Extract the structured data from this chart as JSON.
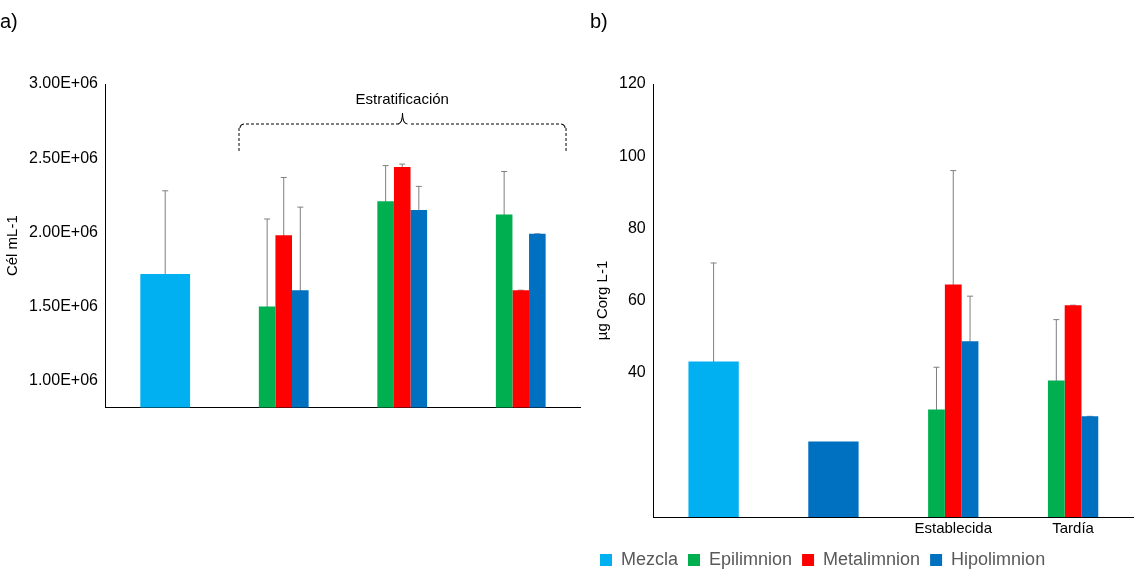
{
  "chart_data": [
    {
      "type": "bar",
      "title": "a)",
      "ylabel": "Cél mL-1",
      "categories": [
        null,
        null,
        null,
        null
      ],
      "series": [
        {
          "color": "#00b0f0",
          "values": [
            1720000,
            null,
            null,
            null
          ],
          "errors": [
            560000,
            null,
            null,
            null
          ]
        },
        {
          "color": "#00b050",
          "values": [
            null,
            1500000,
            2210000,
            2120000
          ],
          "errors": [
            null,
            590000,
            240000,
            290000
          ]
        },
        {
          "color": "#ff0000",
          "values": [
            null,
            1980000,
            2440000,
            1610000
          ],
          "errors": [
            null,
            390000,
            20000,
            0
          ]
        },
        {
          "color": "#0070c0",
          "values": [
            null,
            1610000,
            2150000,
            1990000
          ],
          "errors": [
            null,
            560000,
            160000,
            0
          ]
        }
      ],
      "ylim": [
        820000,
        3000000
      ],
      "yticks": [
        {
          "value": 1000000,
          "label": "1.00E+06"
        },
        {
          "value": 1500000,
          "label": "1.50E+06"
        },
        {
          "value": 2000000,
          "label": "2.00E+06"
        },
        {
          "value": 2500000,
          "label": "2.50E+06"
        },
        {
          "value": 3000000,
          "label": "3.00E+06"
        }
      ],
      "tick_labels": "y",
      "legend": false,
      "annotations": [
        "Estratificación"
      ]
    },
    {
      "type": "bar",
      "title": "b)",
      "ylabel": "µg Corg L-1",
      "categories": [
        null,
        null,
        "Establecida",
        "Tardía"
      ],
      "series": [
        {
          "name": "Mezcla",
          "color": "#00b0f0",
          "values": [
            43.1,
            null,
            null,
            null
          ],
          "errors": [
            27.3,
            null,
            null,
            null
          ]
        },
        {
          "name": "Epilimnion",
          "color": "#00b050",
          "values": [
            null,
            null,
            29.8,
            37.8
          ],
          "errors": [
            null,
            null,
            11.7,
            16.9
          ]
        },
        {
          "name": "Metalimnion",
          "color": "#ff0000",
          "values": [
            null,
            null,
            64.4,
            58.7
          ],
          "errors": [
            null,
            null,
            31.6,
            0
          ]
        },
        {
          "name": "Hipolimnion",
          "color": "#0070c0",
          "values": [
            null,
            20.9,
            48.7,
            27.9
          ],
          "errors": [
            null,
            null,
            12.5,
            0
          ]
        }
      ],
      "ylim": [
        0,
        120
      ],
      "yticks": [
        40,
        60,
        80,
        100,
        120
      ],
      "legend": "bottom left"
    }
  ]
}
